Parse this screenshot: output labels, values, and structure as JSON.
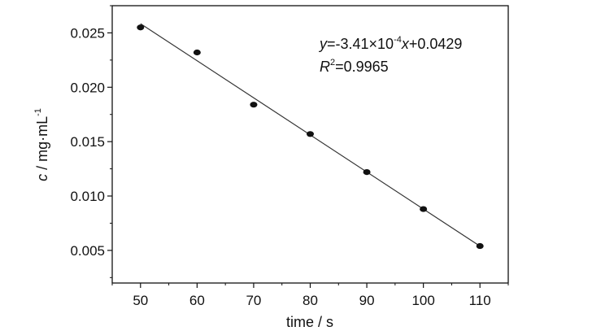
{
  "chart_data": {
    "type": "scatter",
    "title": "",
    "xlabel": "time / s",
    "ylabel": {
      "var": "c",
      "unit_prefix": " / mg·mL",
      "exponent": "-1"
    },
    "x": [
      50,
      60,
      70,
      80,
      90,
      100,
      110
    ],
    "series": [
      {
        "values": [
          0.0255,
          0.0232,
          0.0184,
          0.0157,
          0.0122,
          0.0088,
          0.0054
        ]
      }
    ],
    "fit_line": {
      "slope": -0.000341,
      "intercept": 0.0429
    },
    "xlim": [
      45,
      115
    ],
    "ylim": [
      0.002,
      0.0275
    ],
    "xticks": [
      "50",
      "60",
      "70",
      "80",
      "90",
      "100",
      "110"
    ],
    "yticks": [
      "0.005",
      "0.010",
      "0.015",
      "0.020",
      "0.025"
    ],
    "annotation": {
      "equation_var": "y",
      "equation_body": "=-3.41×10",
      "equation_exp": "-4",
      "equation_var2": "x",
      "equation_tail": "+0.0429",
      "r2_var": "R",
      "r2_exp": "2",
      "r2_value": "=0.9965"
    },
    "grid": false,
    "legend": "none",
    "colors": {
      "points": "#111111",
      "line": "#333333",
      "axes": "#111111"
    }
  }
}
